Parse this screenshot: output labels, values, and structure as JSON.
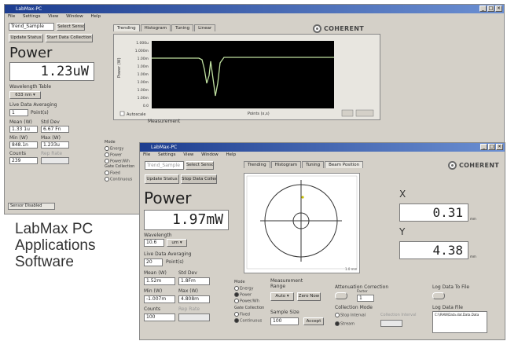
{
  "back_window": {
    "title": "LabMax-PC",
    "menu": [
      "File",
      "Settings",
      "View",
      "Window",
      "Help"
    ],
    "sensor_field": "Trend_Sample",
    "select_sensor_label": "Select Sensor",
    "update_status_label": "Update Status",
    "start_collection_label": "Start Data Collection",
    "tabs": [
      "Trending",
      "Histogram",
      "Tuning",
      "Linear"
    ],
    "brand": "COHERENT",
    "power_title": "Power",
    "power_value": "1.23uW",
    "wavelength_label": "Wavelength Table",
    "wavelength_value": "633 nm",
    "averaging_label": "Live Data Averaging",
    "averaging_value": "1",
    "averaging_unit": "Point(s)",
    "mean_label": "Mean (W)",
    "mean_value": "1.33 1u",
    "stddev_label": "Std Dev",
    "stddev_value": "6.67 Fn",
    "min_label": "Min (W)",
    "min_value": "848.1n",
    "max_label": "Max (W)",
    "max_value": "1.233u",
    "counts_label": "Counts",
    "counts_value": "239",
    "rep_rate_label": "Rep Rate",
    "status_bar": "Sensor Disabled",
    "chart_y_ticks": [
      "1.000u",
      "1.000m",
      "1.00m",
      "1.00m",
      "1.00m",
      "1.00m",
      "1.00m",
      "1.00m",
      "0.0"
    ],
    "chart_ylabel": "Power (W)",
    "chart_xlabel": "Points (x,s)",
    "autoscale_label": "Autoscale",
    "mode_label": "Mode",
    "mode_options": [
      "Energy",
      "Power",
      "Power/Wh"
    ],
    "gate_label": "Gate Collection",
    "gate_options": [
      "Fixed",
      "Continuous"
    ],
    "measurement_label": "Measurement"
  },
  "front_window": {
    "title": "LabMax-PC",
    "menu": [
      "File",
      "Settings",
      "View",
      "Window",
      "Help"
    ],
    "sensor_field": "Trend_Sample",
    "select_sensor_label": "Select Sensor",
    "update_status_label": "Update Status",
    "stop_collection_label": "Stop Data Collection",
    "tabs": [
      "Trending",
      "Histogram",
      "Tuning",
      "Beam Position"
    ],
    "brand": "COHERENT",
    "power_title": "Power",
    "power_value": "1.97mW",
    "wavelength_label": "Wavelength",
    "wavelength_value": "10.6",
    "wavelength_unit": "um",
    "averaging_label": "Live Data Averaging",
    "averaging_value": "20",
    "averaging_unit": "Point(s)",
    "mean_label": "Mean (W)",
    "mean_value": "1.52m",
    "stddev_label": "Std Dev",
    "stddev_value": "1.8Fm",
    "min_label": "Min (W)",
    "min_value": "-1.007m",
    "max_label": "Max (W)",
    "max_value": "4.808m",
    "counts_label": "Counts",
    "counts_value": "100",
    "rep_rate_label": "Rep Rate",
    "x_label": "X",
    "x_value": "0.31",
    "y_label": "Y",
    "y_value": "4.38",
    "coord_unit": "mm",
    "plot_scale_label": "1.0 mm",
    "mode_label": "Mode",
    "mode_options": [
      "Energy",
      "Power",
      "Power/Wh"
    ],
    "gate_label": "Gate Collection",
    "gate_options": [
      "Fixed",
      "Continuous"
    ],
    "measurement_label": "Measurement Range",
    "range_value": "Auto",
    "zero_label": "Zero Now",
    "attenuation_label": "Attenuation Correction",
    "factor_label": "Factor",
    "factor_value": "1",
    "collection_mode_label": "Collection Mode",
    "collection_options": [
      "Stop Interval",
      "Stream"
    ],
    "collection_interval_label": "Collection Interval",
    "sample_size_label": "Sample Size",
    "sample_size_value": "100",
    "accept_label": "Accept",
    "log_label": "Log Data To File",
    "log_file_label": "Log Data File",
    "log_file_value": "C:\\\\RAW\\Data.dat.Data.Data"
  },
  "caption": [
    "LabMax PC",
    "Applications",
    "Software"
  ],
  "colors": {
    "chart_bg": "#000000",
    "trace": "#bfe0a0",
    "window": "#d4d0c8",
    "title_blue": "#1d3d8f",
    "beam_dot": "#c8c000"
  }
}
